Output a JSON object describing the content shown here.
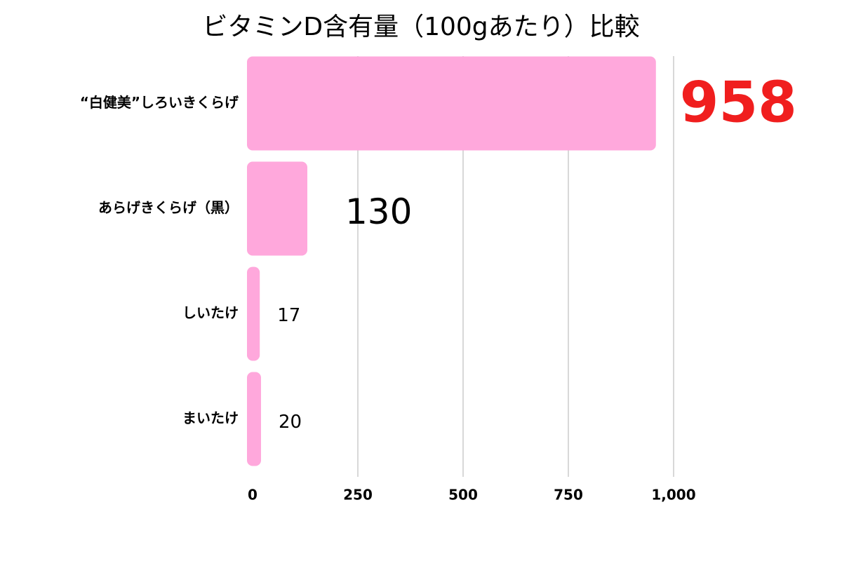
{
  "chart_data": {
    "type": "bar",
    "orientation": "horizontal",
    "title": "ビタミンD含有量（100gあたり）比較",
    "categories": [
      "“白健美”しろいきくらげ",
      "あらげきくらげ（黒）",
      "しいたけ",
      "まいたけ"
    ],
    "values": [
      958,
      130,
      17,
      20
    ],
    "color": "#ffa8dc",
    "xlim": [
      0,
      1000
    ],
    "xticks": [
      0,
      250,
      500,
      750,
      {
        "value": 1000,
        "label": "1,000"
      }
    ],
    "grid": true
  }
}
